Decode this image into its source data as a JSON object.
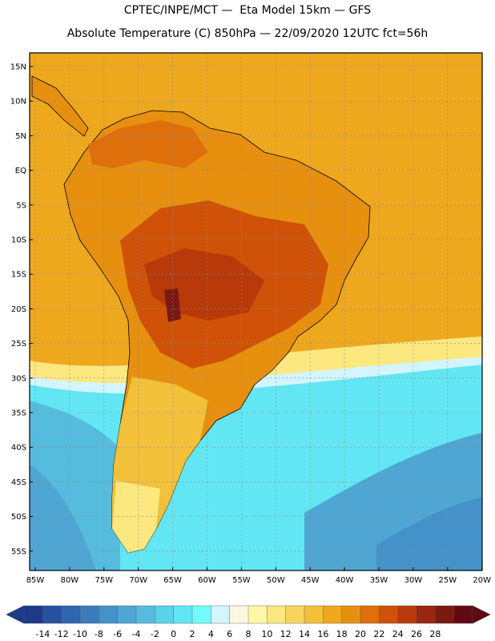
{
  "header": {
    "title_line1": "CPTEC/INPE/MCT —  Eta Model 15km — GFS",
    "title_line2": "Absolute Temperature (C) 850hPa — 22/09/2020 12UTC fct=56h"
  },
  "axes": {
    "lat_labels": [
      "15N",
      "10N",
      "5N",
      "EQ",
      "5S",
      "10S",
      "15S",
      "20S",
      "25S",
      "30S",
      "35S",
      "40S",
      "45S",
      "50S",
      "55S"
    ],
    "lon_labels": [
      "85W",
      "80W",
      "75W",
      "70W",
      "65W",
      "60W",
      "55W",
      "50W",
      "45W",
      "40W",
      "35W",
      "30W",
      "25W",
      "20W"
    ]
  },
  "colorbar": {
    "labels": [
      "-14",
      "-12",
      "-10",
      "-8",
      "-6",
      "-4",
      "-2",
      "0",
      "2",
      "4",
      "6",
      "8",
      "10",
      "12",
      "14",
      "16",
      "18",
      "20",
      "22",
      "24",
      "26",
      "28"
    ],
    "colors": [
      "#1d3a8a",
      "#27519e",
      "#2f66ae",
      "#3a7cbd",
      "#4492c9",
      "#4fa6d3",
      "#56bcde",
      "#5ad2e8",
      "#62e6f3",
      "#72faff",
      "#d2f5ff",
      "#fff6e0",
      "#fff6a6",
      "#fde880",
      "#f9d45c",
      "#f3c03a",
      "#eea81e",
      "#e7900f",
      "#de6f0a",
      "#cf5208",
      "#b8390a",
      "#982610",
      "#7a1812",
      "#620a14"
    ]
  }
}
